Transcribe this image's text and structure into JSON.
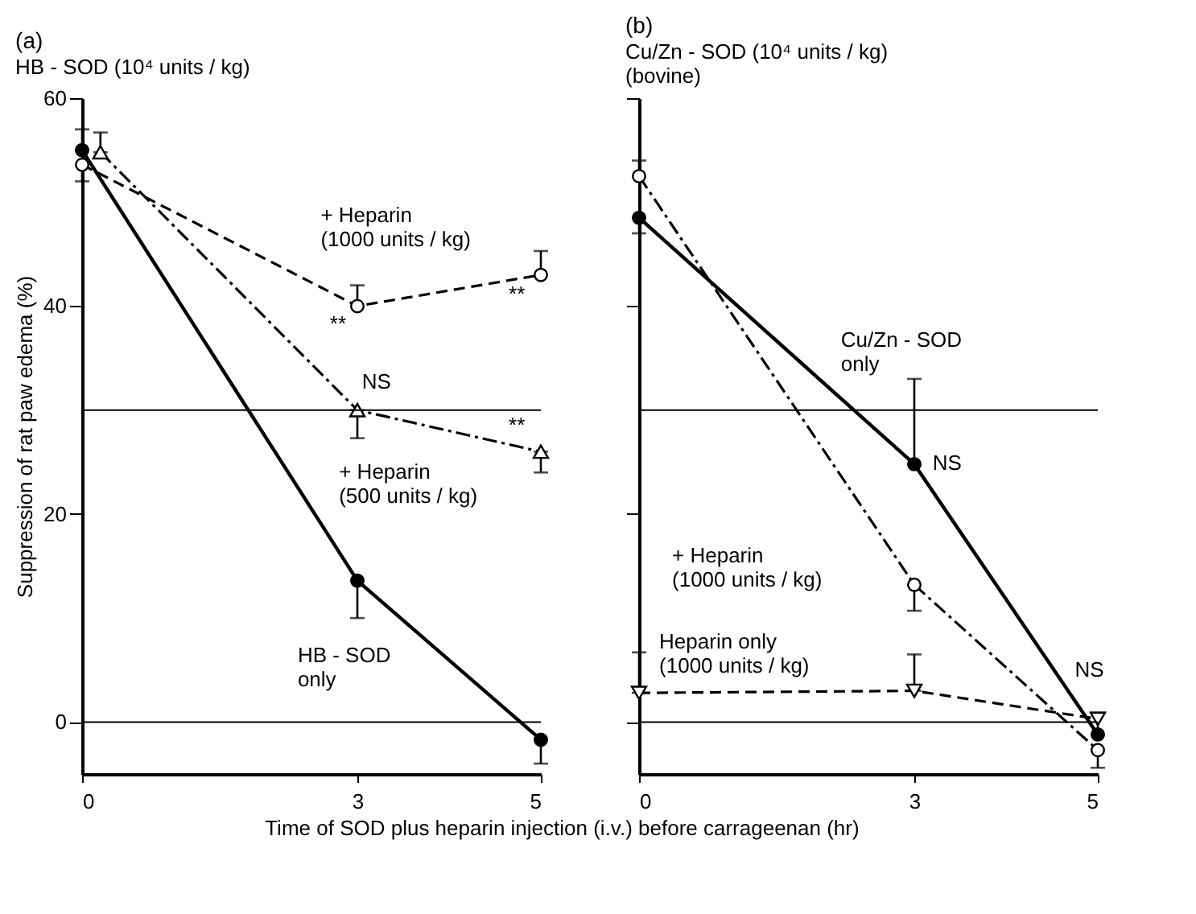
{
  "chart_data": [
    {
      "type": "line",
      "title": "(a)",
      "subtitle": "HB - SOD (10⁴ units / kg)",
      "xlabel": "Time of SOD plus heparin injection (i.v.) before carrageenan (hr)",
      "ylabel": "Suppression of rat paw edema (%)",
      "xlim": [
        0,
        5
      ],
      "xticks": [
        0,
        3,
        5
      ],
      "ylim": [
        -5,
        60
      ],
      "yticks": [
        0,
        20,
        40,
        60
      ],
      "grid": false,
      "series": [
        {
          "color": "#000000",
          "x": [
            0,
            3,
            5
          ],
          "values": [
            55,
            13.6,
            -1.7
          ],
          "errors": [
            [
              55,
              57
            ],
            [
              10,
              13.6
            ],
            [
              -4,
              -1.7
            ]
          ],
          "marker": "circle",
          "line_style": "solid"
        },
        {
          "color": "#000000",
          "x": [
            0,
            3,
            5
          ],
          "values": [
            53.6,
            40,
            43
          ],
          "errors": [
            [
              52,
              53.6
            ],
            [
              40,
              42
            ],
            [
              43,
              45.3
            ]
          ],
          "marker": "circle-open",
          "line_style": "dashed"
        },
        {
          "color": "#000000",
          "x": [
            0.2,
            3,
            5
          ],
          "values": [
            54.8,
            30,
            26
          ],
          "errors": [
            [
              54.8,
              56.7
            ],
            [
              27.3,
              30
            ],
            [
              24,
              26
            ]
          ],
          "marker": "triangle-open",
          "line_style": "dashdot"
        }
      ],
      "ref_lines": [
        {
          "axis": "y",
          "value": 30
        },
        {
          "axis": "y",
          "value": 0
        }
      ],
      "annotations": [
        "+ Heparin\n(1000 units / kg)",
        "**",
        "**",
        "NS",
        "**",
        "+ Heparin\n(500 units / kg)",
        "HB - SOD\nonly"
      ]
    },
    {
      "type": "line",
      "title": "(b)",
      "subtitle": "Cu/Zn - SOD (10⁴ units / kg)\n(bovine)",
      "xlim": [
        0,
        5
      ],
      "xticks": [
        0,
        3,
        5
      ],
      "ylim": [
        -5,
        60
      ],
      "yticks": [
        0,
        20,
        40,
        60
      ],
      "tick_labels": "x",
      "grid": false,
      "series": [
        {
          "color": "#000000",
          "x": [
            0,
            3,
            5
          ],
          "values": [
            48.5,
            24.8,
            -1.2
          ],
          "errors": [
            [
              47,
              48.5
            ],
            [
              24.8,
              33
            ],
            [
              -1.2,
              0.9
            ]
          ],
          "marker": "circle",
          "line_style": "solid"
        },
        {
          "color": "#000000",
          "x": [
            0,
            3,
            5
          ],
          "values": [
            52.5,
            13.2,
            -2.7
          ],
          "errors": [
            [
              52.5,
              54
            ],
            [
              10.7,
              13.2
            ],
            [
              -4.4,
              -2.7
            ]
          ],
          "marker": "circle-open",
          "line_style": "dashdot"
        },
        {
          "color": "#000000",
          "x": [
            0,
            3,
            5
          ],
          "values": [
            2.8,
            3,
            0.3
          ],
          "errors": [
            [
              2.8,
              6.7
            ],
            [
              3,
              6.5
            ],
            null
          ],
          "marker": "triangle-down-open",
          "line_style": "dashed"
        }
      ],
      "ref_lines": [
        {
          "axis": "y",
          "value": 30
        },
        {
          "axis": "y",
          "value": 0
        }
      ],
      "annotations": [
        "Cu/Zn - SOD\nonly",
        "NS",
        "+ Heparin\n(1000 units / kg)",
        "Heparin only\n(1000 units / kg)",
        "NS"
      ]
    }
  ]
}
